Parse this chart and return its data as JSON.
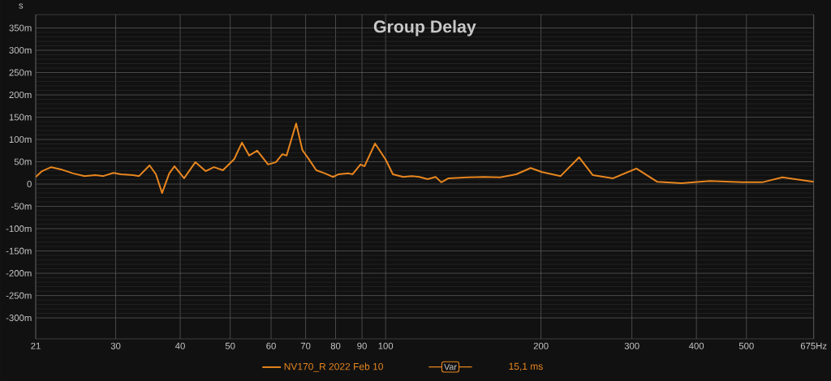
{
  "chart_data": {
    "type": "line",
    "title": "Group Delay",
    "ylabel": "s",
    "x": [
      21.0,
      21.6,
      22.5,
      23.5,
      24.8,
      26.1,
      27.4,
      28.4,
      29.7,
      30.7,
      32.4,
      33.3,
      34.9,
      35.9,
      36.9,
      38.1,
      39.0,
      40.7,
      42.8,
      44.8,
      46.5,
      48.4,
      50.9,
      52.7,
      54.4,
      56.4,
      59.2,
      61.3,
      63.1,
      64.3,
      67.1,
      69.0,
      70.8,
      73.4,
      76.3,
      79.1,
      81.1,
      84.8,
      86.3,
      89.4,
      91.0,
      95.4,
      100,
      103.3,
      108.2,
      112.2,
      116.3,
      120.6,
      125.0,
      128.2,
      132.4,
      144.3,
      155.1,
      166.7,
      179.1,
      191.0,
      200.9,
      218.3,
      237.1,
      252.0,
      275.8,
      306.1,
      336.1,
      374.3,
      424.6,
      490.4,
      536.5,
      587.0,
      675
    ],
    "series": [
      {
        "name": "NV170_R 2022 Feb 10",
        "color": "#e8861e",
        "values": [
          16,
          29,
          38,
          33,
          24,
          18,
          20,
          18,
          25,
          22,
          20,
          18,
          42,
          22,
          -20,
          24,
          40,
          13,
          49,
          29,
          38,
          31,
          56,
          93,
          64,
          75,
          44,
          49,
          67,
          64,
          136,
          76,
          58,
          31,
          24,
          16,
          22,
          24,
          22,
          44,
          40,
          91,
          55,
          22,
          16,
          18,
          16,
          11,
          16,
          4,
          13,
          15,
          16,
          15,
          22,
          36,
          27,
          18,
          60,
          20,
          13,
          35,
          5,
          2,
          7,
          4,
          4,
          15,
          5
        ]
      }
    ],
    "xlim": [
      21,
      675
    ],
    "ylim": [
      -347,
      380
    ],
    "xticks": [
      21,
      30,
      40,
      50,
      60,
      70,
      80,
      90,
      100,
      200,
      300,
      400,
      500,
      {
        "value": 675,
        "label": "675Hz"
      }
    ],
    "yticks": [
      {
        "value": -300,
        "label": "-300m"
      },
      {
        "value": -250,
        "label": "-250m"
      },
      {
        "value": -200,
        "label": "-200m"
      },
      {
        "value": -150,
        "label": "-150m"
      },
      {
        "value": -100,
        "label": "-100m"
      },
      {
        "value": -50,
        "label": "-50m"
      },
      0,
      {
        "value": 50,
        "label": "50m"
      },
      {
        "value": 100,
        "label": "100m"
      },
      {
        "value": 150,
        "label": "150m"
      },
      {
        "value": 200,
        "label": "200m"
      },
      {
        "value": 250,
        "label": "250m"
      },
      {
        "value": 300,
        "label": "300m"
      },
      {
        "value": 350,
        "label": "350m"
      }
    ],
    "log": "x",
    "grid": true,
    "legend": "bottom",
    "line_style": "solid",
    "marker": "none",
    "annotations": [
      "Var",
      "15,1 ms"
    ]
  }
}
